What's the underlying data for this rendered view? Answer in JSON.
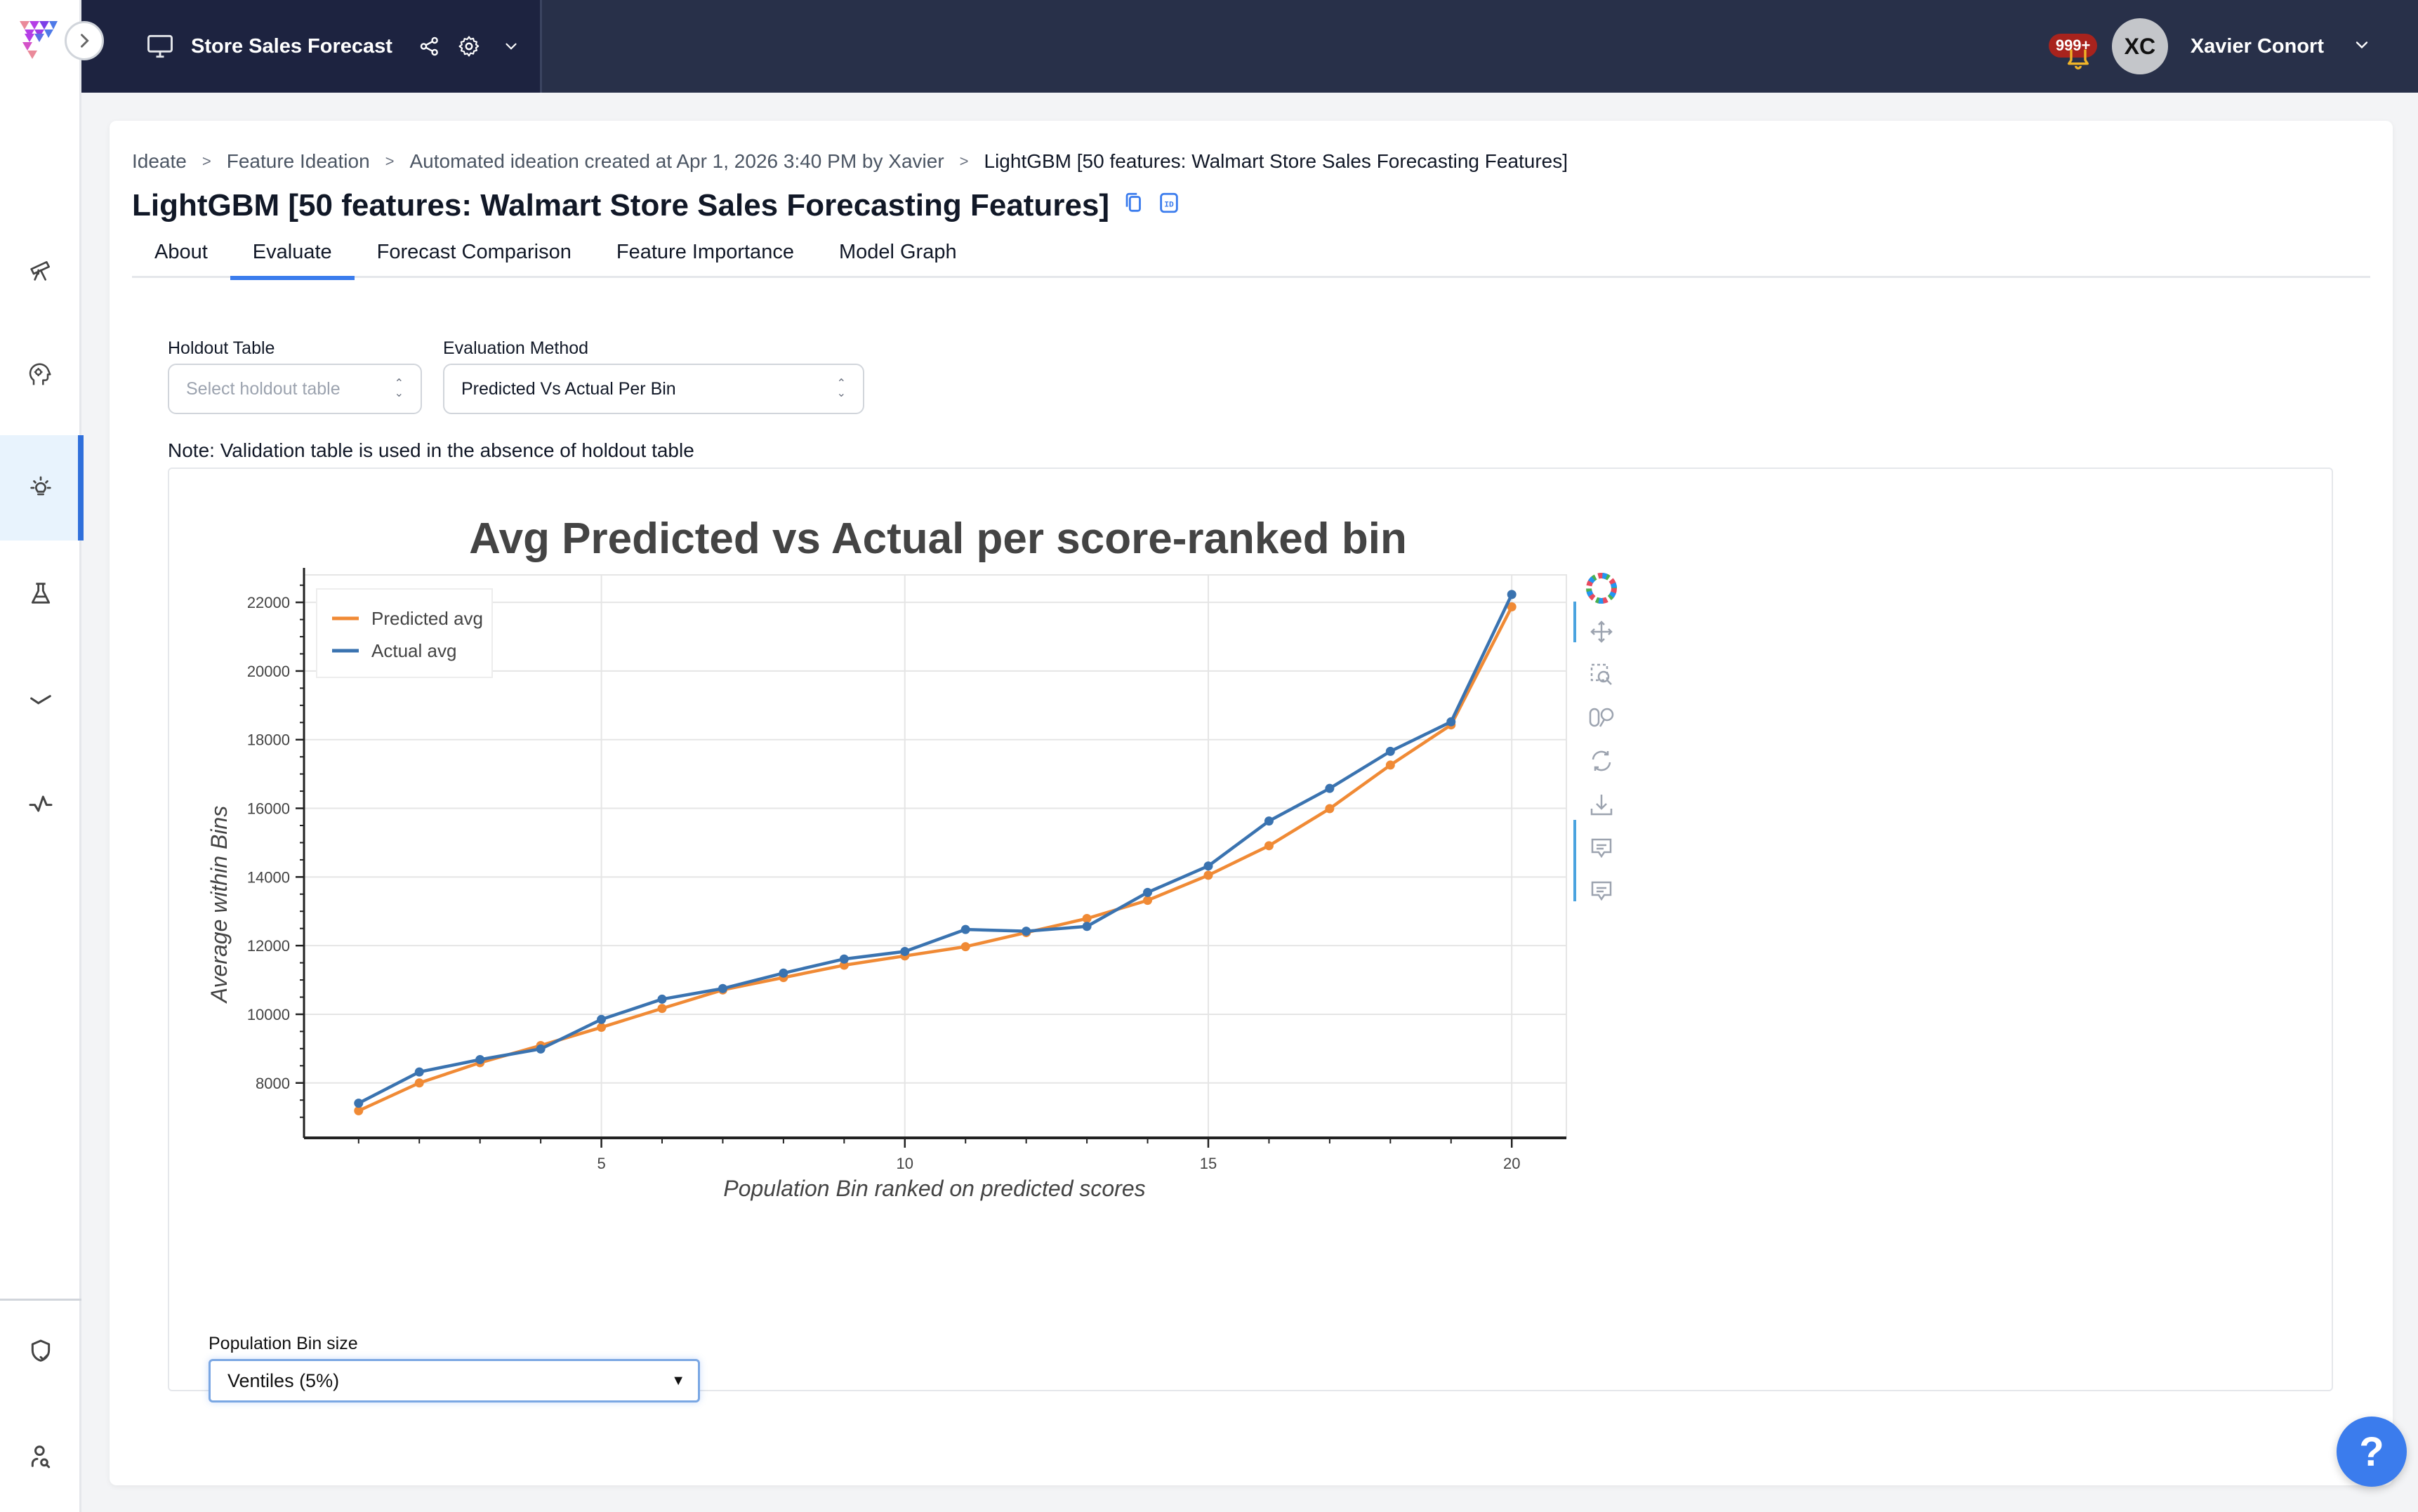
{
  "header": {
    "project_title": "Store Sales Forecast",
    "notification_badge": "999+",
    "user_initials": "XC",
    "user_name": "Xavier Conort"
  },
  "sidebar": {
    "items": [
      {
        "name": "explore",
        "icon": "telescope-icon"
      },
      {
        "name": "ai-brain",
        "icon": "brain-gear-icon"
      },
      {
        "name": "ideate",
        "icon": "lightbulb-icon",
        "active": true
      },
      {
        "name": "experiment",
        "icon": "flask-icon"
      },
      {
        "name": "approve",
        "icon": "check-icon"
      },
      {
        "name": "monitor",
        "icon": "pulse-icon"
      }
    ],
    "bottom_items": [
      {
        "name": "governance",
        "icon": "shield-check-icon"
      },
      {
        "name": "user-search",
        "icon": "user-search-icon"
      }
    ]
  },
  "breadcrumb": [
    "Ideate",
    "Feature Ideation",
    "Automated ideation created at Apr 1, 2026 3:40 PM by Xavier",
    "LightGBM [50 features: Walmart Store Sales Forecasting Features]"
  ],
  "breadcrumb_separator": ">",
  "page_title": "LightGBM [50 features: Walmart Store Sales Forecasting Features]",
  "tabs": [
    "About",
    "Evaluate",
    "Forecast Comparison",
    "Feature Importance",
    "Model Graph"
  ],
  "active_tab": "Evaluate",
  "form": {
    "holdout_label": "Holdout Table",
    "holdout_placeholder": "Select holdout table",
    "method_label": "Evaluation Method",
    "method_value": "Predicted Vs Actual Per Bin",
    "note": "Note: Validation table is used in the absence of holdout table"
  },
  "bin_size": {
    "label": "Population Bin size",
    "value": "Ventiles (5%)"
  },
  "help_label": "?",
  "colors": {
    "predicted": "#f08a35",
    "actual": "#3a73b0",
    "accent": "#3b7ced",
    "header_bg": "#283049",
    "badge": "#a8231d"
  },
  "chart_data": {
    "type": "line",
    "title": "Avg Predicted vs Actual per score-ranked bin",
    "xlabel": "Population Bin ranked on predicted scores",
    "ylabel": "Average within Bins",
    "x": [
      1,
      2,
      3,
      4,
      5,
      6,
      7,
      8,
      9,
      10,
      11,
      12,
      13,
      14,
      15,
      16,
      17,
      18,
      19,
      20
    ],
    "x_ticks": [
      5,
      10,
      15,
      20
    ],
    "y_ticks": [
      8000,
      10000,
      12000,
      14000,
      16000,
      18000,
      20000,
      22000
    ],
    "xlim": [
      0.1,
      20.9
    ],
    "ylim": [
      6400,
      22800
    ],
    "grid": true,
    "legend_position": "top-left",
    "series": [
      {
        "name": "Predicted avg",
        "color": "#f08a35",
        "values": [
          7190,
          8000,
          8590,
          9090,
          9620,
          10170,
          10710,
          11070,
          11430,
          11700,
          11970,
          12380,
          12790,
          13320,
          14050,
          14910,
          15990,
          17260,
          18430,
          21870
        ]
      },
      {
        "name": "Actual avg",
        "color": "#3a73b0",
        "values": [
          7410,
          8320,
          8680,
          8990,
          9850,
          10440,
          10750,
          11200,
          11610,
          11830,
          12470,
          12420,
          12560,
          13550,
          14320,
          15630,
          16580,
          17660,
          18520,
          22230
        ]
      }
    ],
    "toolbar": [
      "bokeh-logo-icon",
      "pan-icon",
      "box-zoom-icon",
      "wheel-zoom-icon",
      "reset-icon",
      "save-icon",
      "hover-icon",
      "hover-icon"
    ]
  }
}
